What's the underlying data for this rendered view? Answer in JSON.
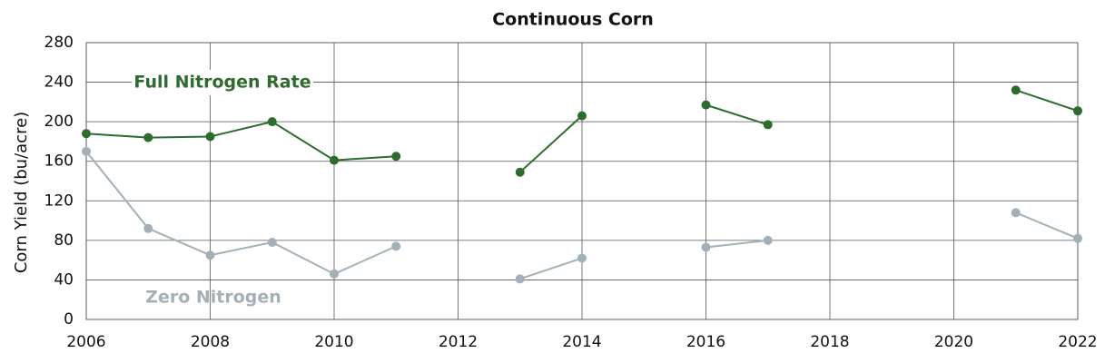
{
  "chart_data": {
    "type": "line",
    "title": "Continuous Corn",
    "ylabel": "Corn Yield (bu/acre)",
    "x": [
      2006,
      2007,
      2008,
      2009,
      2010,
      2011,
      2012,
      2013,
      2014,
      2015,
      2016,
      2017,
      2018,
      2019,
      2020,
      2021,
      2022
    ],
    "series": [
      {
        "name": "Full Nitrogen Rate",
        "color": "#2e6b2e",
        "values": [
          188,
          184,
          185,
          200,
          161,
          165,
          null,
          149,
          206,
          null,
          217,
          197,
          null,
          null,
          null,
          232,
          211
        ]
      },
      {
        "name": "Zero Nitrogen",
        "color": "#a3b0b8",
        "values": [
          170,
          92,
          65,
          78,
          46,
          74,
          null,
          41,
          62,
          null,
          73,
          80,
          null,
          null,
          null,
          108,
          82
        ]
      }
    ],
    "xlim": [
      2006,
      2022
    ],
    "xticks": [
      2006,
      2008,
      2010,
      2012,
      2014,
      2016,
      2018,
      2020,
      2022
    ],
    "ylim": [
      0,
      280
    ],
    "yticks": [
      0,
      40,
      80,
      120,
      160,
      200,
      240,
      280
    ],
    "grid": true
  }
}
